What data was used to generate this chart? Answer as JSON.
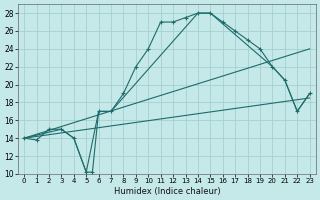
{
  "xlabel": "Humidex (Indice chaleur)",
  "xlim": [
    -0.5,
    23.5
  ],
  "ylim": [
    10,
    29
  ],
  "xtick_vals": [
    0,
    1,
    2,
    3,
    4,
    5,
    6,
    7,
    8,
    9,
    10,
    11,
    12,
    13,
    14,
    15,
    16,
    17,
    18,
    19,
    20,
    21,
    22,
    23
  ],
  "ytick_vals": [
    10,
    12,
    14,
    16,
    18,
    20,
    22,
    24,
    26,
    28
  ],
  "bg_color": "#c5e8e8",
  "grid_color": "#a8d0d0",
  "line_color": "#1e6b6b",
  "line1": {
    "x": [
      0,
      1,
      2,
      3,
      4,
      5,
      5.5,
      6,
      7,
      8,
      9,
      10,
      11,
      12,
      13,
      14,
      15,
      16,
      17,
      18,
      19,
      20,
      21,
      22,
      23
    ],
    "y": [
      14,
      13.8,
      15,
      15,
      14,
      10.2,
      10.2,
      17,
      17,
      19,
      22,
      24,
      27,
      27,
      27.5,
      28,
      28,
      27,
      26,
      25,
      24,
      22,
      20.5,
      17,
      19
    ]
  },
  "line2": {
    "x": [
      0,
      3,
      4,
      5,
      6,
      7,
      14,
      15,
      20,
      21,
      22,
      23
    ],
    "y": [
      14,
      15,
      14,
      10.2,
      17,
      17,
      28,
      28,
      22,
      20.5,
      17,
      19
    ]
  },
  "line3_straight": {
    "x": [
      0,
      23
    ],
    "y": [
      14,
      18.5
    ]
  },
  "line4_straight": {
    "x": [
      0,
      23
    ],
    "y": [
      14,
      24
    ]
  }
}
